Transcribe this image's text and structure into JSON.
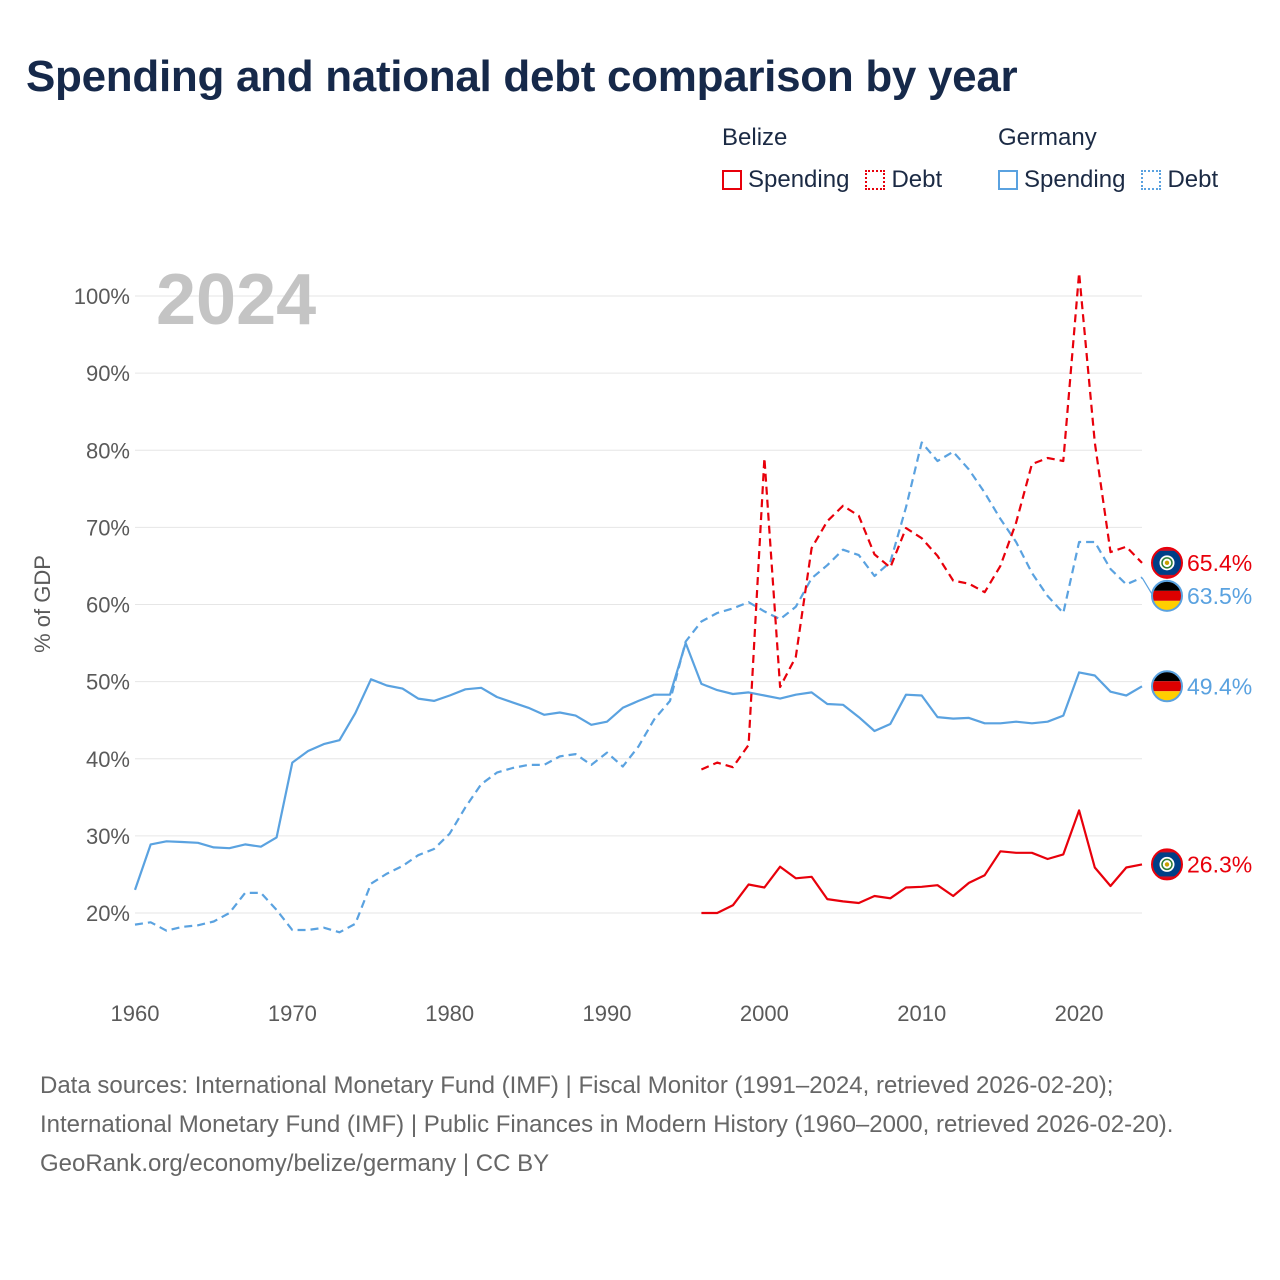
{
  "title": "Spending and national debt comparison by year",
  "colors": {
    "belize": "#e8000b",
    "germany": "#5aa2e0",
    "grid": "#e6e6e6",
    "axis_text": "#5a5a5a"
  },
  "legend": {
    "groups": [
      {
        "name": "Belize",
        "color": "#e8000b",
        "items": [
          {
            "label": "Spending",
            "style": "solid"
          },
          {
            "label": "Debt",
            "style": "dotted"
          }
        ]
      },
      {
        "name": "Germany",
        "color": "#5aa2e0",
        "items": [
          {
            "label": "Spending",
            "style": "solid"
          },
          {
            "label": "Debt",
            "style": "dotted"
          }
        ]
      }
    ]
  },
  "footer": {
    "sources": "Data sources: International Monetary Fund (IMF) | Fiscal Monitor (1991–2024, retrieved 2026-02-20); International Monetary Fund (IMF) | Public Finances in Modern History (1960–2000, retrieved 2026-02-20).",
    "credit": "GeoRank.org/economy/belize/germany | CC BY"
  },
  "chart_data": {
    "type": "line",
    "year_label": "2024",
    "ylabel": "% of GDP",
    "xlabel": "",
    "xlim": [
      1960,
      2024
    ],
    "ylim": [
      10,
      105
    ],
    "xticks": [
      1960,
      1970,
      1980,
      1990,
      2000,
      2010,
      2020
    ],
    "yticks": [
      {
        "value": 20,
        "label": "20%"
      },
      {
        "value": 30,
        "label": "30%"
      },
      {
        "value": 40,
        "label": "40%"
      },
      {
        "value": 50,
        "label": "50%"
      },
      {
        "value": 60,
        "label": "60%"
      },
      {
        "value": 70,
        "label": "70%"
      },
      {
        "value": 80,
        "label": "80%"
      },
      {
        "value": 90,
        "label": "90%"
      },
      {
        "value": 100,
        "label": "100%"
      }
    ],
    "grid": true,
    "series": [
      {
        "name": "Germany Spending",
        "country": "Germany",
        "metric": "Spending",
        "color": "#5aa2e0",
        "dash": false,
        "end_label": "49.4%",
        "flag": "germany",
        "x": [
          1960,
          1961,
          1962,
          1963,
          1964,
          1965,
          1966,
          1967,
          1968,
          1969,
          1970,
          1971,
          1972,
          1973,
          1974,
          1975,
          1976,
          1977,
          1978,
          1979,
          1980,
          1981,
          1982,
          1983,
          1984,
          1985,
          1986,
          1987,
          1988,
          1989,
          1990,
          1991,
          1992,
          1993,
          1994,
          1995,
          1996,
          1997,
          1998,
          1999,
          2000,
          2001,
          2002,
          2003,
          2004,
          2005,
          2006,
          2007,
          2008,
          2009,
          2010,
          2011,
          2012,
          2013,
          2014,
          2015,
          2016,
          2017,
          2018,
          2019,
          2020,
          2021,
          2022,
          2023,
          2024
        ],
        "values": [
          23.0,
          28.9,
          29.3,
          29.2,
          29.1,
          28.5,
          28.4,
          28.9,
          28.6,
          29.8,
          39.5,
          41.0,
          41.9,
          42.4,
          45.9,
          50.3,
          49.5,
          49.1,
          47.8,
          47.5,
          48.2,
          49.0,
          49.2,
          48.0,
          47.3,
          46.6,
          45.7,
          46.0,
          45.6,
          44.4,
          44.8,
          46.6,
          47.5,
          48.3,
          48.3,
          55.0,
          49.7,
          48.9,
          48.4,
          48.6,
          48.2,
          47.8,
          48.3,
          48.6,
          47.1,
          47.0,
          45.4,
          43.6,
          44.5,
          48.3,
          48.2,
          45.4,
          45.2,
          45.3,
          44.6,
          44.6,
          44.8,
          44.6,
          44.8,
          45.6,
          51.2,
          50.8,
          48.7,
          48.2,
          49.4
        ]
      },
      {
        "name": "Germany Debt",
        "country": "Germany",
        "metric": "Debt",
        "color": "#5aa2e0",
        "dash": true,
        "end_label": "63.5%",
        "flag": "germany",
        "x": [
          1960,
          1961,
          1962,
          1963,
          1964,
          1965,
          1966,
          1967,
          1968,
          1969,
          1970,
          1971,
          1972,
          1973,
          1974,
          1975,
          1976,
          1977,
          1978,
          1979,
          1980,
          1981,
          1982,
          1983,
          1984,
          1985,
          1986,
          1987,
          1988,
          1989,
          1990,
          1991,
          1992,
          1993,
          1994,
          1995,
          1996,
          1997,
          1998,
          1999,
          2000,
          2001,
          2002,
          2003,
          2004,
          2005,
          2006,
          2007,
          2008,
          2009,
          2010,
          2011,
          2012,
          2013,
          2014,
          2015,
          2016,
          2017,
          2018,
          2019,
          2020,
          2021,
          2022,
          2023,
          2024
        ],
        "values": [
          18.5,
          18.8,
          17.7,
          18.2,
          18.4,
          18.9,
          20.0,
          22.6,
          22.6,
          20.4,
          17.8,
          17.8,
          18.1,
          17.5,
          18.6,
          23.8,
          25.1,
          26.1,
          27.5,
          28.3,
          30.3,
          33.7,
          36.7,
          38.2,
          38.8,
          39.2,
          39.2,
          40.3,
          40.6,
          39.2,
          40.8,
          39.0,
          41.6,
          45.1,
          47.5,
          55.2,
          57.8,
          58.9,
          59.5,
          60.3,
          59.1,
          58.1,
          59.7,
          63.4,
          65.1,
          67.1,
          66.4,
          63.7,
          65.5,
          72.6,
          81.0,
          78.6,
          79.8,
          77.5,
          74.5,
          71.1,
          68.1,
          64.1,
          61.1,
          58.9,
          68.1,
          68.1,
          64.6,
          62.6,
          63.5
        ]
      },
      {
        "name": "Belize Spending",
        "country": "Belize",
        "metric": "Spending",
        "color": "#e8000b",
        "dash": false,
        "end_label": "26.3%",
        "flag": "belize",
        "x": [
          1996,
          1997,
          1998,
          1999,
          2000,
          2001,
          2002,
          2003,
          2004,
          2005,
          2006,
          2007,
          2008,
          2009,
          2010,
          2011,
          2012,
          2013,
          2014,
          2015,
          2016,
          2017,
          2018,
          2019,
          2020,
          2021,
          2022,
          2023,
          2024
        ],
        "values": [
          20.0,
          20.0,
          21.0,
          23.7,
          23.3,
          26.0,
          24.5,
          24.7,
          21.8,
          21.5,
          21.3,
          22.2,
          21.9,
          23.3,
          23.4,
          23.6,
          22.2,
          23.9,
          24.9,
          28.0,
          27.8,
          27.8,
          27.0,
          27.6,
          33.3,
          25.9,
          23.5,
          25.9,
          26.3
        ]
      },
      {
        "name": "Belize Debt",
        "country": "Belize",
        "metric": "Debt",
        "color": "#e8000b",
        "dash": true,
        "end_label": "65.4%",
        "flag": "belize",
        "x": [
          1996,
          1997,
          1998,
          1999,
          2000,
          2001,
          2002,
          2003,
          2004,
          2005,
          2006,
          2007,
          2008,
          2009,
          2010,
          2011,
          2012,
          2013,
          2014,
          2015,
          2016,
          2017,
          2018,
          2019,
          2020,
          2021,
          2022,
          2023,
          2024
        ],
        "values": [
          38.6,
          39.5,
          38.9,
          41.8,
          79.0,
          49.3,
          53.2,
          67.3,
          70.8,
          72.8,
          71.5,
          66.5,
          64.8,
          69.9,
          68.6,
          66.3,
          63.1,
          62.7,
          61.6,
          65.0,
          70.6,
          78.2,
          79.0,
          78.6,
          103.0,
          81.0,
          66.8,
          67.5,
          65.4
        ]
      }
    ]
  }
}
